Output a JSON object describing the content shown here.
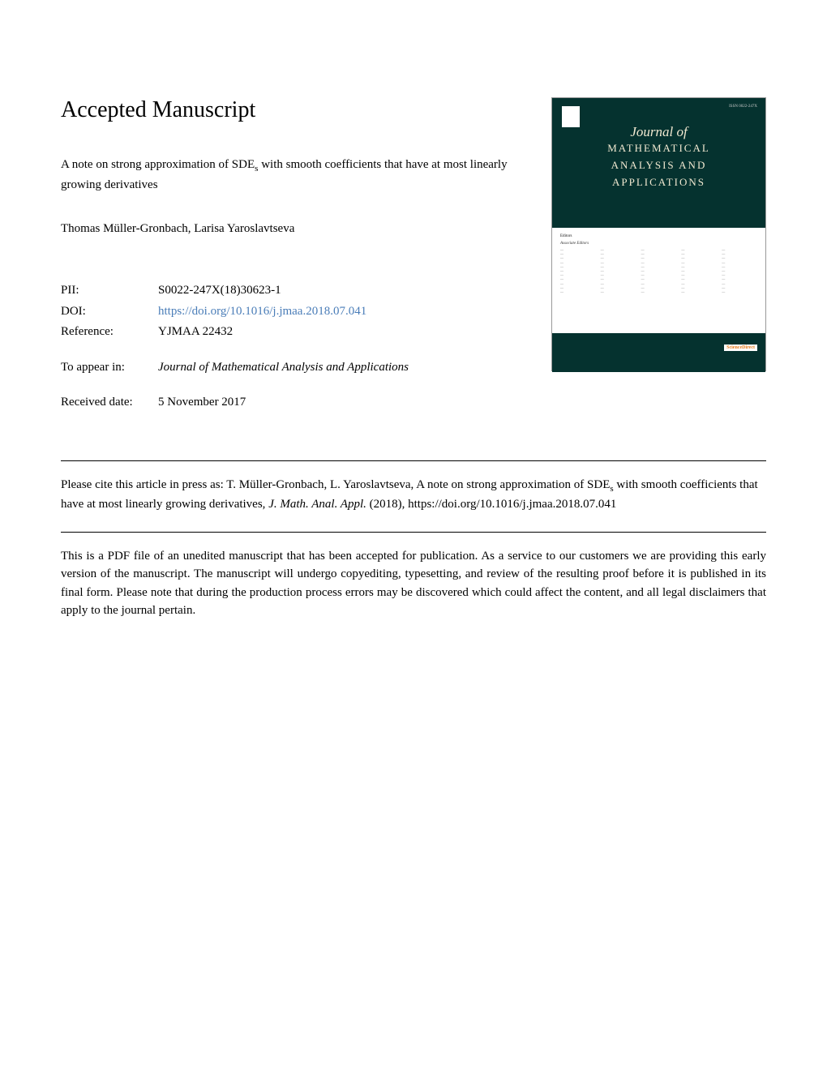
{
  "page_title": "Accepted Manuscript",
  "article": {
    "title_part1": "A note on strong approximation of SDE",
    "title_sub": "s",
    "title_part2": " with smooth coefficients that have at most linearly growing derivatives",
    "authors": "Thomas Müller-Gronbach, Larisa Yaroslavtseva"
  },
  "meta": {
    "pii_label": "PII:",
    "pii_value": "S0022-247X(18)30623-1",
    "doi_label": "DOI:",
    "doi_value": "https://doi.org/10.1016/j.jmaa.2018.07.041",
    "ref_label": "Reference:",
    "ref_value": "YJMAA 22432",
    "appear_label": "To appear in:",
    "appear_value": "Journal of Mathematical Analysis and Applications",
    "received_label": "Received date:",
    "received_value": "5 November 2017"
  },
  "citation": {
    "prefix": "Please cite this article in press as: T. Müller-Gronbach, L. Yaroslavtseva, A note on strong approximation of SDE",
    "sub": "s",
    "mid": " with smooth coefficients that have at most linearly growing derivatives, ",
    "journal": "J. Math. Anal. Appl.",
    "year": " (2018), https://doi.org/10.1016/j.jmaa.2018.07.041"
  },
  "disclaimer": "This is a PDF file of an unedited manuscript that has been accepted for publication. As a service to our customers we are providing this early version of the manuscript. The manuscript will undergo copyediting, typesetting, and review of the resulting proof before it is published in its final form. Please note that during the production process errors may be discovered which could affect the content, and all legal disclaimers that apply to the journal pertain.",
  "cover": {
    "issn": "ISSN 0022-247X",
    "journal_of": "Journal of",
    "name_l1": "MATHEMATICAL",
    "name_l2": "ANALYSIS AND",
    "name_l3": "APPLICATIONS",
    "editors_label": "Editors",
    "assoc_label": "Associate Editors",
    "sciencedirect": "ScienceDirect",
    "background_color": "#05322f",
    "title_color": "#f0e8d0"
  }
}
